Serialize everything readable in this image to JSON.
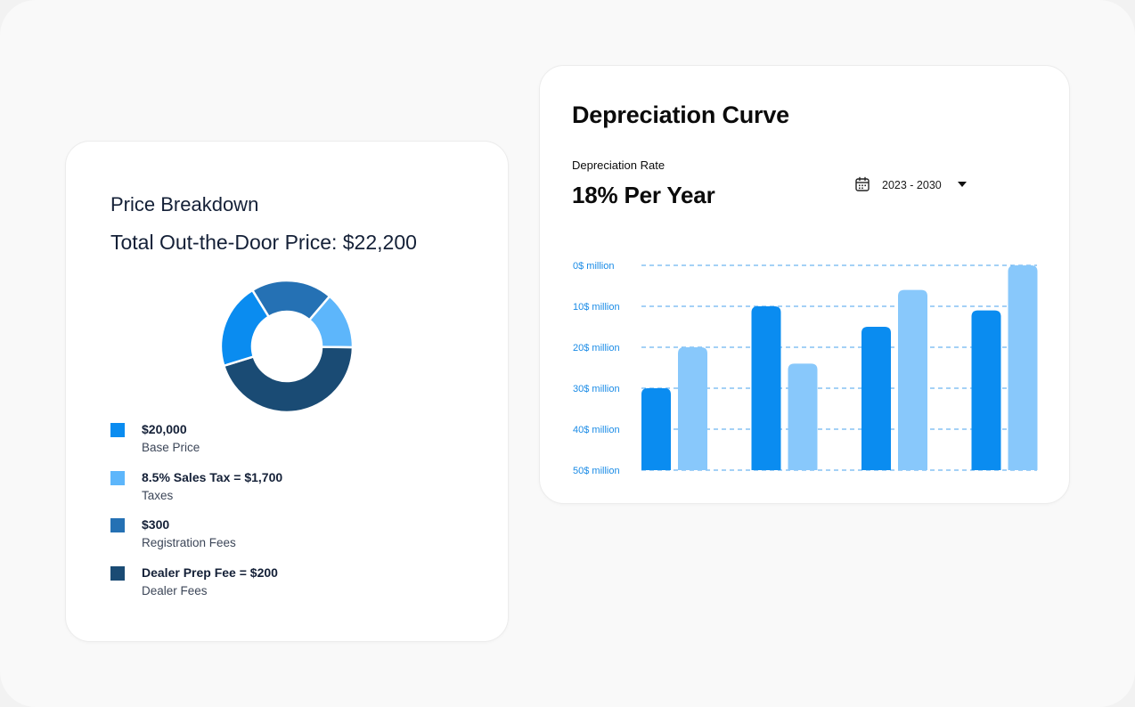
{
  "price_breakdown": {
    "title": "Price Breakdown",
    "total_label": "Total Out-the-Door Price:",
    "total_value": "$22,200",
    "items": [
      {
        "value": "$20,000",
        "label": "Base Price",
        "color": "#0a8cf0"
      },
      {
        "value": "8.5% Sales Tax = $1,700",
        "label": "Taxes",
        "color": "#5db6fb"
      },
      {
        "value": "$300",
        "label": "Registration Fees",
        "color": "#2571b4"
      },
      {
        "value": "Dealer Prep Fee = $200",
        "label": "Dealer Fees",
        "color": "#1a4b74"
      }
    ]
  },
  "depreciation": {
    "title": "Depreciation Curve",
    "rate_label": "Depreciation Rate",
    "rate_value": "18% Per Year",
    "date_range": "2023 - 2030",
    "calendar_icon": "calendar-icon",
    "dropdown_icon": "caret-down-icon"
  },
  "chart_data": [
    {
      "type": "pie",
      "variant": "donut",
      "slices": [
        {
          "color": "#2571b4",
          "fraction": 0.2
        },
        {
          "color": "#5db6fb",
          "fraction": 0.14
        },
        {
          "color": "#1a4b74",
          "fraction": 0.45
        },
        {
          "color": "#0a8cf0",
          "fraction": 0.21
        }
      ]
    },
    {
      "type": "bar",
      "y_ticks": [
        "0$ million",
        "10$ million",
        "20$ million",
        "30$ million",
        "40$ million",
        "50$ million"
      ],
      "ylim": [
        0,
        50
      ],
      "y_inverted": true,
      "grid": "dashed",
      "groups": [
        {
          "values": [
            30,
            20
          ]
        },
        {
          "values": [
            10,
            24
          ]
        },
        {
          "values": [
            15,
            6
          ]
        },
        {
          "values": [
            11,
            0
          ]
        }
      ],
      "series_colors": [
        "#0a8cf0",
        "#88c8fb"
      ],
      "tick_color": "#1a8be6",
      "grid_color": "#4aa3ee"
    }
  ]
}
